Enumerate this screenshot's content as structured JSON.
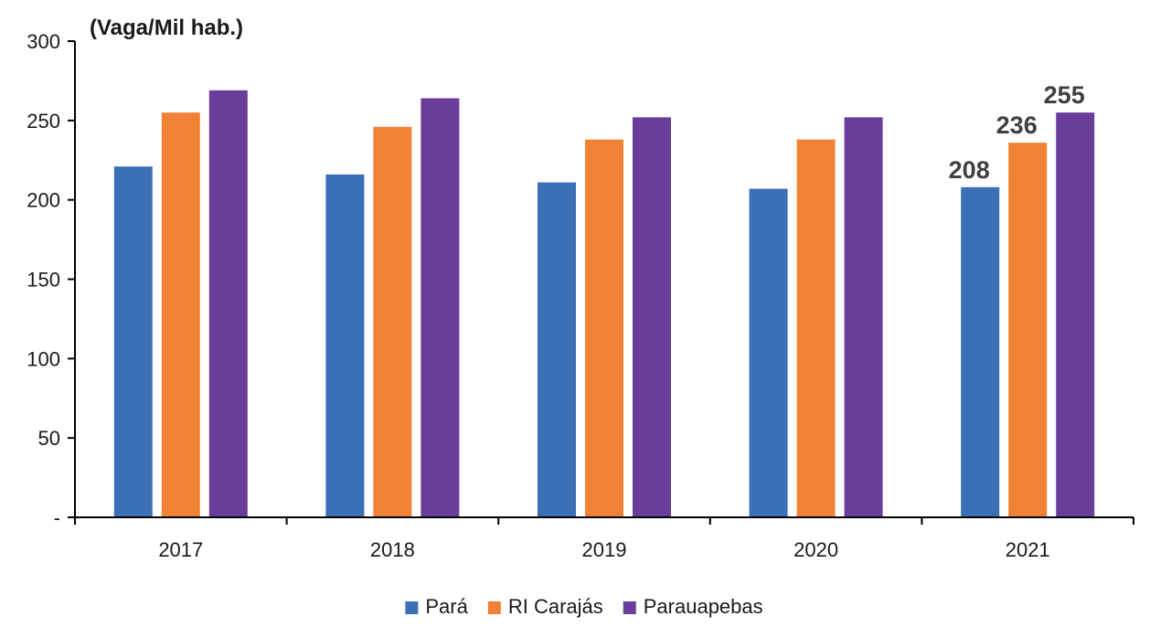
{
  "chart_data": {
    "type": "bar",
    "ylabel": "(Vaga/Mil hab.)",
    "categories": [
      "2017",
      "2018",
      "2019",
      "2020",
      "2021"
    ],
    "ylim": [
      0,
      300
    ],
    "yticks": [
      0,
      50,
      100,
      150,
      200,
      250,
      300
    ],
    "ytick_labels": [
      "-",
      "50",
      "100",
      "150",
      "200",
      "250",
      "300"
    ],
    "grid": false,
    "legend_position": "bottom",
    "series": [
      {
        "name": "Pará",
        "color": "#3b6fb6",
        "values": [
          221,
          216,
          211,
          207,
          208
        ]
      },
      {
        "name": "RI Carajás",
        "color": "#f08236",
        "values": [
          255,
          246,
          238,
          238,
          236
        ]
      },
      {
        "name": "Parauapebas",
        "color": "#6a3d9a",
        "values": [
          269,
          264,
          252,
          252,
          255
        ]
      }
    ],
    "data_labels": [
      {
        "series": 0,
        "category": 4,
        "text": "208"
      },
      {
        "series": 1,
        "category": 4,
        "text": "236"
      },
      {
        "series": 2,
        "category": 4,
        "text": "255"
      }
    ]
  }
}
